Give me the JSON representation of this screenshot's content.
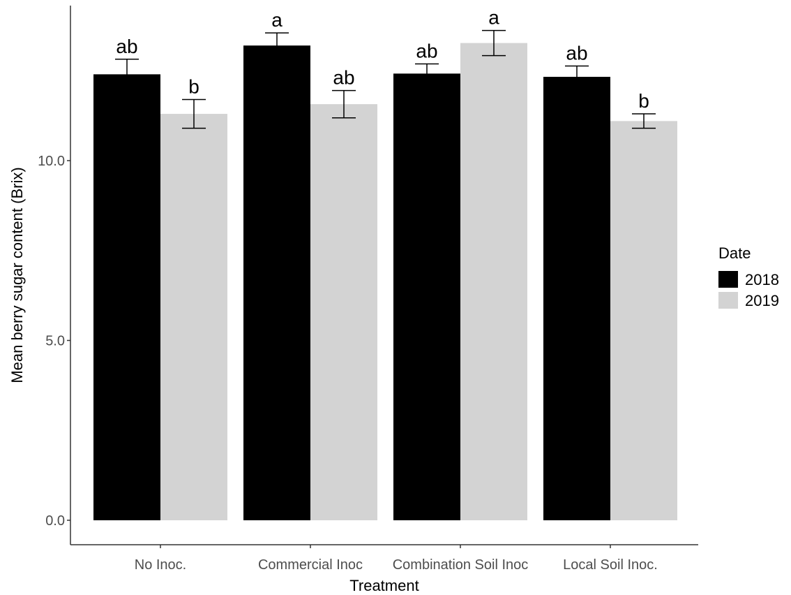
{
  "chart_data": {
    "type": "bar",
    "xlabel": "Treatment",
    "ylabel": "Mean berry sugar content (Brix)",
    "categories": [
      "No Inoc.",
      "Commercial Inoc",
      "Combination Soil Inoc",
      "Local Soil Inoc."
    ],
    "yticks": [
      0,
      5,
      10
    ],
    "ytick_labels": [
      "0.0",
      "5.0",
      "10.0"
    ],
    "ylim": [
      0,
      14.4
    ],
    "grid": false,
    "legend": {
      "title": "Date",
      "position": "right"
    },
    "series": [
      {
        "name": "2018",
        "color": "#000000",
        "values": [
          12.4,
          13.2,
          12.42,
          12.33
        ],
        "errors": [
          0.42,
          0.35,
          0.27,
          0.3
        ],
        "labels": [
          "ab",
          "a",
          "ab",
          "ab"
        ]
      },
      {
        "name": "2019",
        "color": "#d3d3d3",
        "values": [
          11.3,
          11.57,
          13.27,
          11.1
        ],
        "errors": [
          0.4,
          0.38,
          0.35,
          0.2
        ],
        "labels": [
          "b",
          "ab",
          "a",
          "b"
        ]
      }
    ]
  }
}
